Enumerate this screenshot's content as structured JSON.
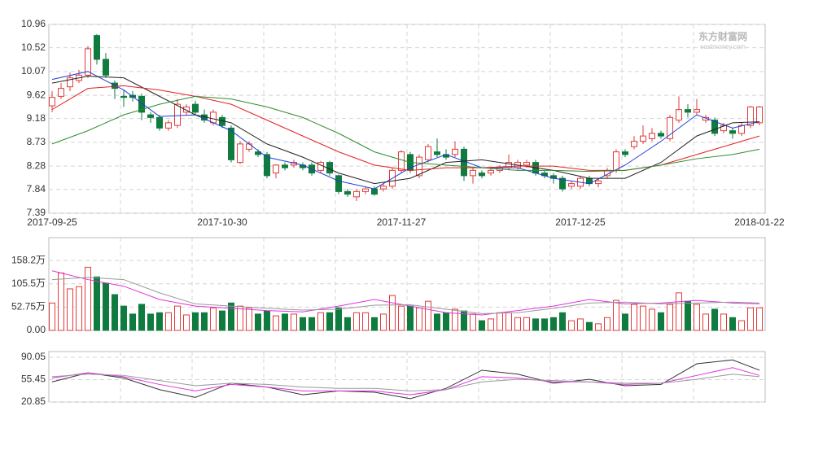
{
  "chart_data": {
    "type": "candlestick",
    "up_color": "#e23b3b",
    "down_color": "#0f7b3e",
    "watermark": "东方财富网",
    "watermark_sub": "eastmoney.com",
    "ylim": [
      7.39,
      10.96
    ],
    "yticks": [
      7.39,
      7.84,
      8.28,
      8.73,
      9.18,
      9.62,
      10.07,
      10.52,
      10.96
    ],
    "grid": true,
    "x_labels": [
      {
        "value": 0,
        "label": "2017-09-25"
      },
      {
        "value": 19,
        "label": "2017-10-30"
      },
      {
        "value": 39,
        "label": "2017-11-27"
      },
      {
        "value": 59,
        "label": "2017-12-25"
      },
      {
        "value": 79,
        "label": "2018-01-22"
      }
    ],
    "ohlc": [
      [
        9.42,
        9.7,
        9.3,
        9.58
      ],
      [
        9.6,
        9.85,
        9.55,
        9.75
      ],
      [
        9.78,
        10.05,
        9.7,
        9.95
      ],
      [
        9.9,
        10.1,
        9.85,
        10.0
      ],
      [
        10.0,
        10.55,
        9.95,
        10.5
      ],
      [
        10.75,
        10.78,
        10.2,
        10.3
      ],
      [
        10.3,
        10.42,
        9.95,
        10.0
      ],
      [
        9.85,
        9.9,
        9.55,
        9.75
      ],
      [
        9.6,
        9.72,
        9.4,
        9.58
      ],
      [
        9.62,
        9.7,
        9.5,
        9.58
      ],
      [
        9.6,
        9.65,
        9.15,
        9.3
      ],
      [
        9.25,
        9.3,
        9.1,
        9.2
      ],
      [
        9.2,
        9.25,
        8.95,
        9.0
      ],
      [
        9.0,
        9.15,
        8.95,
        9.1
      ],
      [
        9.05,
        9.55,
        9.0,
        9.45
      ],
      [
        9.3,
        9.45,
        9.25,
        9.4
      ],
      [
        9.45,
        9.52,
        9.25,
        9.3
      ],
      [
        9.25,
        9.35,
        9.1,
        9.15
      ],
      [
        9.1,
        9.35,
        9.05,
        9.3
      ],
      [
        9.2,
        9.25,
        9.0,
        9.05
      ],
      [
        9.0,
        9.05,
        8.35,
        8.4
      ],
      [
        8.35,
        8.75,
        8.32,
        8.7
      ],
      [
        8.6,
        8.75,
        8.55,
        8.7
      ],
      [
        8.55,
        8.6,
        8.45,
        8.5
      ],
      [
        8.5,
        8.55,
        8.05,
        8.1
      ],
      [
        8.15,
        8.32,
        8.05,
        8.3
      ],
      [
        8.3,
        8.35,
        8.2,
        8.25
      ],
      [
        8.3,
        8.4,
        8.25,
        8.35
      ],
      [
        8.3,
        8.35,
        8.2,
        8.25
      ],
      [
        8.3,
        8.35,
        8.1,
        8.15
      ],
      [
        8.2,
        8.38,
        8.15,
        8.35
      ],
      [
        8.35,
        8.38,
        8.1,
        8.15
      ],
      [
        8.1,
        8.12,
        7.75,
        7.8
      ],
      [
        7.8,
        7.85,
        7.7,
        7.75
      ],
      [
        7.7,
        7.85,
        7.62,
        7.8
      ],
      [
        7.8,
        7.9,
        7.75,
        7.85
      ],
      [
        7.85,
        7.9,
        7.72,
        7.75
      ],
      [
        7.85,
        7.95,
        7.8,
        7.9
      ],
      [
        7.9,
        8.25,
        7.85,
        8.2
      ],
      [
        8.2,
        8.58,
        8.15,
        8.55
      ],
      [
        8.5,
        8.55,
        8.15,
        8.2
      ],
      [
        8.1,
        8.5,
        8.05,
        8.45
      ],
      [
        8.4,
        8.7,
        8.35,
        8.65
      ],
      [
        8.55,
        8.8,
        8.45,
        8.5
      ],
      [
        8.5,
        8.6,
        8.4,
        8.45
      ],
      [
        8.5,
        8.75,
        8.45,
        8.6
      ],
      [
        8.6,
        8.65,
        8.0,
        8.1
      ],
      [
        8.1,
        8.25,
        7.95,
        8.2
      ],
      [
        8.15,
        8.2,
        8.05,
        8.1
      ],
      [
        8.15,
        8.25,
        8.1,
        8.2
      ],
      [
        8.2,
        8.3,
        8.15,
        8.25
      ],
      [
        8.25,
        8.5,
        8.2,
        8.35
      ],
      [
        8.25,
        8.4,
        8.2,
        8.35
      ],
      [
        8.3,
        8.4,
        8.25,
        8.35
      ],
      [
        8.35,
        8.4,
        8.1,
        8.15
      ],
      [
        8.15,
        8.2,
        8.05,
        8.1
      ],
      [
        8.1,
        8.15,
        7.95,
        8.05
      ],
      [
        8.05,
        8.1,
        7.8,
        7.85
      ],
      [
        7.9,
        8.0,
        7.85,
        7.95
      ],
      [
        7.9,
        8.1,
        7.85,
        8.05
      ],
      [
        8.05,
        8.1,
        7.9,
        7.95
      ],
      [
        7.95,
        8.05,
        7.88,
        8.0
      ],
      [
        8.1,
        8.25,
        8.05,
        8.2
      ],
      [
        8.2,
        8.6,
        8.15,
        8.55
      ],
      [
        8.55,
        8.6,
        8.45,
        8.5
      ],
      [
        8.65,
        8.85,
        8.6,
        8.75
      ],
      [
        8.75,
        9.05,
        8.7,
        8.85
      ],
      [
        8.8,
        9.0,
        8.75,
        8.9
      ],
      [
        8.9,
        8.95,
        8.8,
        8.85
      ],
      [
        8.8,
        9.25,
        8.75,
        9.2
      ],
      [
        9.15,
        9.6,
        9.1,
        9.35
      ],
      [
        9.35,
        9.45,
        9.2,
        9.3
      ],
      [
        9.3,
        9.55,
        9.25,
        9.35
      ],
      [
        9.15,
        9.25,
        9.1,
        9.2
      ],
      [
        9.15,
        9.2,
        8.85,
        8.9
      ],
      [
        8.95,
        9.1,
        8.9,
        9.05
      ],
      [
        8.95,
        9.0,
        8.8,
        8.9
      ],
      [
        8.9,
        9.1,
        8.85,
        9.05
      ],
      [
        9.05,
        9.42,
        9.0,
        9.4
      ],
      [
        9.1,
        9.42,
        9.05,
        9.4
      ]
    ],
    "ma_x": [
      0,
      4,
      8,
      12,
      16,
      20,
      24,
      28,
      32,
      36,
      40,
      44,
      48,
      52,
      56,
      60,
      64,
      68,
      72,
      76,
      79
    ],
    "ma": [
      {
        "color": "#1f3fd6",
        "values": [
          9.92,
          10.07,
          9.72,
          9.22,
          9.25,
          8.95,
          8.45,
          8.3,
          8.0,
          7.85,
          8.25,
          8.5,
          8.25,
          8.25,
          8.05,
          7.95,
          8.3,
          8.75,
          9.25,
          9.0,
          9.12
        ]
      },
      {
        "color": "#222222",
        "values": [
          9.85,
          9.98,
          9.95,
          9.6,
          9.25,
          9.1,
          8.7,
          8.45,
          8.15,
          7.95,
          8.05,
          8.35,
          8.4,
          8.3,
          8.2,
          8.05,
          8.05,
          8.35,
          8.85,
          9.1,
          9.12
        ]
      },
      {
        "color": "#e32020",
        "values": [
          9.35,
          9.75,
          9.8,
          9.72,
          9.6,
          9.45,
          9.15,
          8.85,
          8.55,
          8.3,
          8.2,
          8.25,
          8.25,
          8.28,
          8.28,
          8.2,
          8.2,
          8.3,
          8.5,
          8.7,
          8.85
        ]
      },
      {
        "color": "#2e8b2e",
        "values": [
          8.7,
          8.95,
          9.25,
          9.45,
          9.6,
          9.55,
          9.4,
          9.2,
          8.9,
          8.55,
          8.35,
          8.3,
          8.25,
          8.2,
          8.2,
          8.18,
          8.2,
          8.3,
          8.42,
          8.5,
          8.6
        ]
      }
    ],
    "volume": {
      "ylim": [
        0,
        210
      ],
      "yticks": [
        {
          "value": 0,
          "label": "0.00"
        },
        {
          "value": 52.75,
          "label": "52.75万"
        },
        {
          "value": 105.5,
          "label": "105.5万"
        },
        {
          "value": 158.2,
          "label": "158.2万"
        }
      ],
      "values": [
        62,
        130,
        94,
        99,
        143,
        121,
        107,
        81,
        55,
        37,
        59,
        37,
        40,
        40,
        55,
        35,
        40,
        40,
        51,
        44,
        62,
        55,
        51,
        37,
        44,
        33,
        37,
        37,
        29,
        29,
        40,
        40,
        51,
        29,
        40,
        40,
        29,
        37,
        79,
        55,
        55,
        51,
        66,
        37,
        40,
        48,
        44,
        37,
        22,
        26,
        40,
        40,
        29,
        29,
        26,
        26,
        29,
        40,
        22,
        26,
        18,
        15,
        29,
        68,
        37,
        59,
        55,
        48,
        40,
        59,
        85,
        66,
        59,
        37,
        48,
        37,
        29,
        22,
        51,
        51
      ],
      "ma": [
        {
          "color": "#e033e0",
          "values": [
            135,
            115,
            100,
            70,
            55,
            50,
            45,
            42,
            55,
            70,
            55,
            40,
            35,
            45,
            55,
            70,
            60,
            62,
            68,
            62,
            60
          ]
        },
        {
          "color": "#999999",
          "values": [
            115,
            120,
            115,
            85,
            60,
            55,
            50,
            46,
            48,
            57,
            58,
            48,
            38,
            40,
            50,
            62,
            64,
            60,
            62,
            64,
            62
          ]
        }
      ]
    },
    "indicator": {
      "ylim": [
        20.85,
        98.9
      ],
      "yticks": [
        20.85,
        55.45,
        90.05
      ],
      "lines": [
        {
          "color": "#333333",
          "values": [
            52,
            66,
            58,
            40,
            28,
            50,
            44,
            32,
            38,
            36,
            26,
            42,
            70,
            64,
            50,
            56,
            46,
            48,
            80,
            86,
            70
          ]
        },
        {
          "color": "#e033e0",
          "values": [
            58,
            66,
            60,
            48,
            38,
            48,
            44,
            38,
            38,
            38,
            32,
            40,
            60,
            58,
            52,
            52,
            48,
            50,
            62,
            74,
            62
          ]
        },
        {
          "color": "#999999",
          "values": [
            60,
            64,
            62,
            54,
            46,
            50,
            48,
            44,
            42,
            42,
            38,
            40,
            52,
            56,
            54,
            52,
            50,
            50,
            56,
            64,
            60
          ]
        }
      ]
    }
  }
}
